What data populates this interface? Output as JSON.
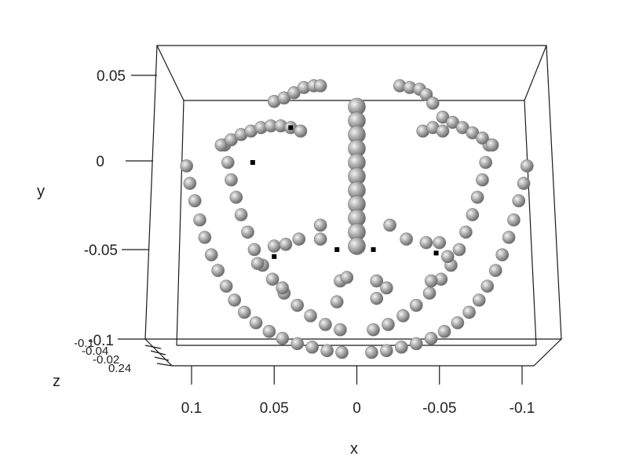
{
  "chart_data": {
    "type": "scatter",
    "subtype": "3d-scatter",
    "xlabel": "x",
    "ylabel": "y",
    "zlabel": "z",
    "x_ticks": [
      "0.1",
      "0.05",
      "0",
      "-0.05",
      "-0.1"
    ],
    "x_tick_values": [
      0.1,
      0.05,
      0,
      -0.05,
      -0.1
    ],
    "y_ticks": [
      "0.05",
      "0",
      "-0.05",
      "-0.1"
    ],
    "y_tick_values": [
      0.05,
      0,
      -0.05,
      -0.1
    ],
    "z_ticks": [
      "-0.1",
      "-0.04",
      "-0.02",
      "0.24"
    ],
    "xlim": [
      0.1,
      -0.1
    ],
    "ylim": [
      -0.1,
      0.06
    ],
    "x_reversed": true,
    "point_style": "grey shaded spheres",
    "point_color": "#9a9a9a",
    "marker_color": "#000000",
    "series": [
      {
        "part": "outer-left-jaw",
        "points": [
          [
            0.103,
            -0.002
          ],
          [
            0.101,
            -0.012
          ],
          [
            0.098,
            -0.022
          ],
          [
            0.095,
            -0.033
          ],
          [
            0.092,
            -0.043
          ],
          [
            0.088,
            -0.053
          ],
          [
            0.084,
            -0.062
          ],
          [
            0.079,
            -0.071
          ],
          [
            0.074,
            -0.079
          ],
          [
            0.068,
            -0.086
          ],
          [
            0.061,
            -0.092
          ],
          [
            0.053,
            -0.097
          ],
          [
            0.045,
            -0.101
          ],
          [
            0.036,
            -0.104
          ],
          [
            0.027,
            -0.106
          ],
          [
            0.018,
            -0.108
          ],
          [
            0.009,
            -0.109
          ]
        ]
      },
      {
        "part": "outer-right-jaw",
        "points": [
          [
            -0.103,
            -0.002
          ],
          [
            -0.101,
            -0.012
          ],
          [
            -0.098,
            -0.022
          ],
          [
            -0.095,
            -0.033
          ],
          [
            -0.092,
            -0.043
          ],
          [
            -0.088,
            -0.053
          ],
          [
            -0.084,
            -0.062
          ],
          [
            -0.079,
            -0.071
          ],
          [
            -0.074,
            -0.079
          ],
          [
            -0.068,
            -0.086
          ],
          [
            -0.061,
            -0.092
          ],
          [
            -0.053,
            -0.097
          ],
          [
            -0.045,
            -0.101
          ],
          [
            -0.036,
            -0.104
          ],
          [
            -0.027,
            -0.106
          ],
          [
            -0.018,
            -0.108
          ],
          [
            -0.009,
            -0.109
          ]
        ]
      },
      {
        "part": "inner-left-jaw",
        "points": [
          [
            0.08,
            0.01
          ],
          [
            0.078,
            0.0
          ],
          [
            0.076,
            -0.01
          ],
          [
            0.073,
            -0.02
          ],
          [
            0.07,
            -0.03
          ],
          [
            0.066,
            -0.04
          ],
          [
            0.062,
            -0.05
          ],
          [
            0.057,
            -0.059
          ],
          [
            0.051,
            -0.067
          ],
          [
            0.044,
            -0.075
          ],
          [
            0.036,
            -0.082
          ],
          [
            0.028,
            -0.088
          ],
          [
            0.019,
            -0.093
          ],
          [
            0.01,
            -0.096
          ]
        ]
      },
      {
        "part": "inner-right-jaw",
        "points": [
          [
            -0.08,
            0.01
          ],
          [
            -0.078,
            0.0
          ],
          [
            -0.076,
            -0.01
          ],
          [
            -0.073,
            -0.02
          ],
          [
            -0.07,
            -0.03
          ],
          [
            -0.066,
            -0.04
          ],
          [
            -0.062,
            -0.05
          ],
          [
            -0.057,
            -0.059
          ],
          [
            -0.051,
            -0.067
          ],
          [
            -0.044,
            -0.075
          ],
          [
            -0.036,
            -0.082
          ],
          [
            -0.028,
            -0.088
          ],
          [
            -0.019,
            -0.093
          ],
          [
            -0.01,
            -0.096
          ]
        ]
      },
      {
        "part": "left-brow",
        "points": [
          [
            0.05,
            0.035
          ],
          [
            0.044,
            0.037
          ],
          [
            0.038,
            0.04
          ],
          [
            0.032,
            0.043
          ],
          [
            0.026,
            0.044
          ],
          [
            0.022,
            0.044
          ],
          [
            0.082,
            0.01
          ],
          [
            0.076,
            0.013
          ],
          [
            0.07,
            0.016
          ],
          [
            0.064,
            0.018
          ],
          [
            0.058,
            0.02
          ],
          [
            0.052,
            0.021
          ],
          [
            0.046,
            0.021
          ],
          [
            0.04,
            0.02
          ],
          [
            0.034,
            0.018
          ]
        ]
      },
      {
        "part": "right-brow",
        "points": [
          [
            -0.026,
            0.044
          ],
          [
            -0.032,
            0.043
          ],
          [
            -0.038,
            0.042
          ],
          [
            -0.042,
            0.039
          ],
          [
            -0.046,
            0.034
          ],
          [
            -0.052,
            0.026
          ],
          [
            -0.058,
            0.023
          ],
          [
            -0.064,
            0.02
          ],
          [
            -0.07,
            0.017
          ],
          [
            -0.076,
            0.014
          ],
          [
            -0.082,
            0.01
          ],
          [
            -0.04,
            0.018
          ],
          [
            -0.046,
            0.02
          ],
          [
            -0.052,
            0.018
          ]
        ]
      },
      {
        "part": "nose",
        "points": [
          [
            0.0,
            0.032
          ],
          [
            0.0,
            0.024
          ],
          [
            0.0,
            0.016
          ],
          [
            0.0,
            0.008
          ],
          [
            0.0,
            0.0
          ],
          [
            0.0,
            -0.008
          ],
          [
            0.0,
            -0.016
          ],
          [
            0.0,
            -0.024
          ],
          [
            0.0,
            -0.032
          ],
          [
            0.0,
            -0.04
          ],
          [
            0.0,
            -0.048
          ]
        ]
      },
      {
        "part": "loose-points",
        "points": [
          [
            0.05,
            -0.048
          ],
          [
            0.043,
            -0.047
          ],
          [
            0.035,
            -0.044
          ],
          [
            0.022,
            -0.044
          ],
          [
            0.022,
            -0.036
          ],
          [
            0.06,
            -0.058
          ],
          [
            0.045,
            -0.072
          ],
          [
            0.01,
            -0.068
          ],
          [
            0.006,
            -0.066
          ],
          [
            -0.012,
            -0.068
          ],
          [
            -0.018,
            -0.072
          ],
          [
            -0.042,
            -0.046
          ],
          [
            -0.05,
            -0.046
          ],
          [
            -0.03,
            -0.044
          ],
          [
            -0.02,
            -0.036
          ],
          [
            -0.055,
            -0.054
          ],
          [
            -0.045,
            -0.068
          ],
          [
            0.012,
            -0.08
          ],
          [
            -0.012,
            -0.078
          ]
        ]
      },
      {
        "part": "black-markers",
        "points": [
          [
            0.05,
            -0.054
          ],
          [
            0.012,
            -0.05
          ],
          [
            -0.01,
            -0.05
          ],
          [
            -0.048,
            -0.052
          ],
          [
            0.063,
            -0.0
          ],
          [
            0.04,
            0.02
          ]
        ]
      }
    ]
  }
}
